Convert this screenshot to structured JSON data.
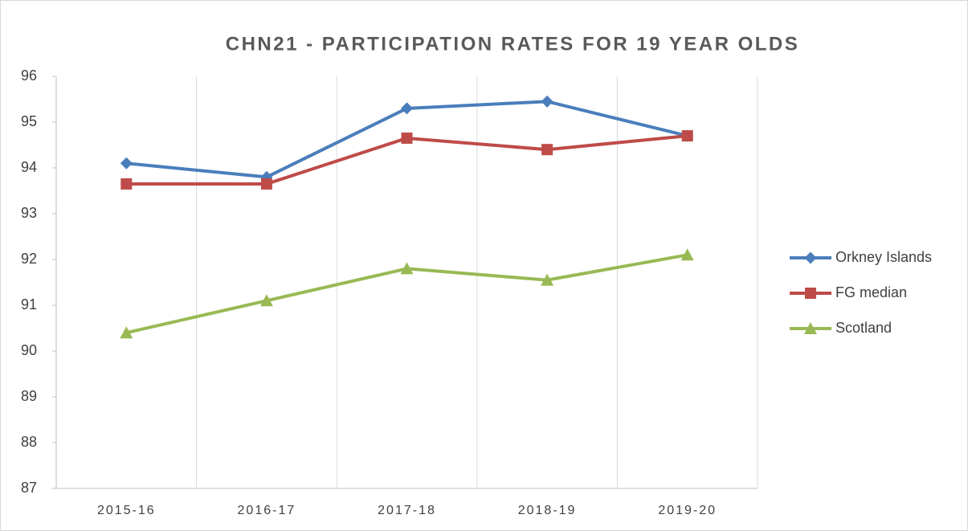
{
  "chart_data": {
    "type": "line",
    "title": "CHN21 - PARTICIPATION RATES FOR 19 YEAR OLDS",
    "categories": [
      "2015-16",
      "2016-17",
      "2017-18",
      "2018-19",
      "2019-20"
    ],
    "series": [
      {
        "name": "Orkney Islands",
        "color": "#4a7ebb",
        "marker": "diamond",
        "values": [
          94.1,
          93.8,
          95.3,
          95.45,
          94.7
        ]
      },
      {
        "name": "FG median",
        "color": "#be4b48",
        "marker": "square",
        "values": [
          93.65,
          93.65,
          94.65,
          94.4,
          94.7
        ]
      },
      {
        "name": "Scotland",
        "color": "#98b954",
        "marker": "triangle",
        "values": [
          90.4,
          91.1,
          91.8,
          91.55,
          92.1
        ]
      }
    ],
    "ylim": [
      87,
      96
    ],
    "yticks": [
      87,
      88,
      89,
      90,
      91,
      92,
      93,
      94,
      95,
      96
    ],
    "grid": "vertical",
    "legend": "right"
  }
}
